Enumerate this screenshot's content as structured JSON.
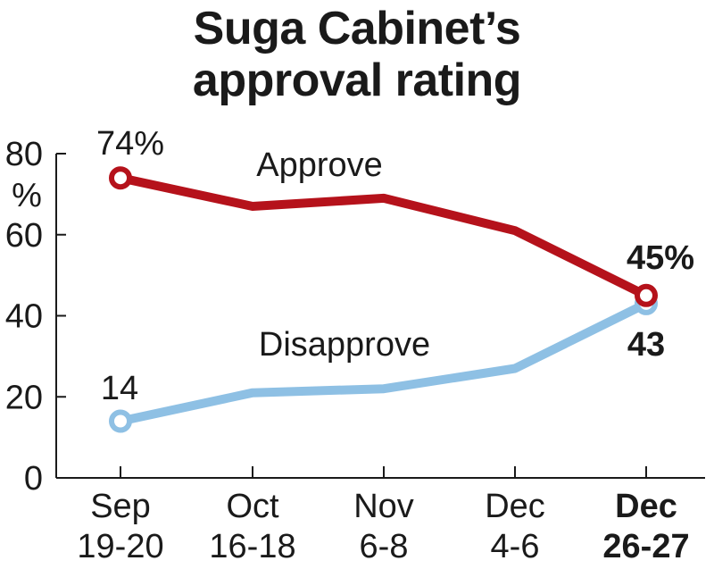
{
  "title_line1": "Suga Cabinet’s",
  "title_line2": "approval rating",
  "chart_data": {
    "type": "line",
    "title": "Suga Cabinet’s approval rating",
    "ylabel": "%",
    "ylim": [
      0,
      80
    ],
    "yticks": [
      "0",
      "20",
      "40",
      "60",
      "80"
    ],
    "categories": [
      {
        "line1": "Sep",
        "line2": "19-20",
        "bold": false
      },
      {
        "line1": "Oct",
        "line2": "16-18",
        "bold": false
      },
      {
        "line1": "Nov",
        "line2": "6-8",
        "bold": false
      },
      {
        "line1": "Dec",
        "line2": "4-6",
        "bold": false
      },
      {
        "line1": "Dec",
        "line2": "26-27",
        "bold": true
      }
    ],
    "series": [
      {
        "name": "Approve",
        "color": "#b5121b",
        "values": [
          74,
          67,
          69,
          61,
          45
        ],
        "start_label": "74%",
        "end_label": "45%"
      },
      {
        "name": "Disapprove",
        "color": "#8ec0e4",
        "values": [
          14,
          21,
          22,
          27,
          43
        ],
        "start_label": "14",
        "end_label": "43"
      }
    ]
  }
}
